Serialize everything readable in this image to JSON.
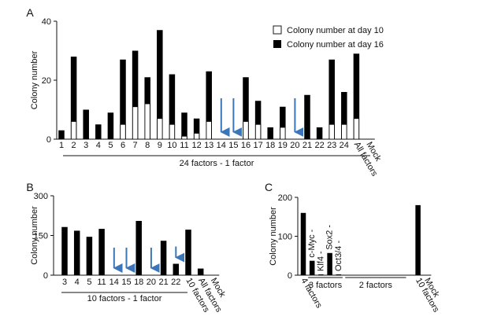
{
  "colors": {
    "bar": "#000000",
    "early_bar": "#ffffff",
    "bar_stroke": "#000000",
    "arrow": "#3a76b8",
    "axis": "#111111"
  },
  "chart_data": [
    {
      "panel": "A",
      "type": "bar",
      "stacking": "overlay",
      "ylabel": "Colony number",
      "yticks": [
        "0",
        "20",
        "40"
      ],
      "ylim": [
        0,
        40
      ],
      "categories": [
        "1",
        "2",
        "3",
        "4",
        "5",
        "6",
        "7",
        "8",
        "9",
        "10",
        "11",
        "12",
        "13",
        "14",
        "15",
        "16",
        "17",
        "18",
        "19",
        "20",
        "21",
        "22",
        "23",
        "24",
        "All factors",
        "Mock"
      ],
      "rotated_categories": [
        "All factors",
        "Mock"
      ],
      "series": [
        {
          "name": "Colony number at day 16",
          "style": "solid",
          "values": [
            3,
            28,
            10,
            5,
            9,
            27,
            30,
            21,
            37,
            22,
            9,
            7,
            23,
            0,
            0,
            21,
            13,
            4,
            11,
            0,
            15,
            4,
            27,
            16,
            29,
            0
          ]
        },
        {
          "name": "Colony number at day 10",
          "style": "open",
          "values": [
            0,
            6,
            0,
            0,
            0,
            5,
            11,
            12,
            7,
            5,
            1,
            2,
            6,
            0,
            0,
            6,
            5,
            0,
            4,
            0,
            0,
            0,
            5,
            5,
            7,
            0
          ]
        }
      ],
      "arrows": [
        "14",
        "15",
        "20"
      ],
      "legend_position": "top-right",
      "group_label": "24 factors - 1 factor",
      "grid": false
    },
    {
      "panel": "B",
      "type": "bar",
      "ylabel": "Colony number",
      "yticks": [
        "0",
        "150",
        "300"
      ],
      "ylim": [
        0,
        300
      ],
      "categories": [
        "3",
        "4",
        "5",
        "11",
        "14",
        "15",
        "18",
        "20",
        "21",
        "22",
        "10 factors",
        "All factors",
        "Mock"
      ],
      "rotated_categories": [
        "10 factors",
        "All factors",
        "Mock"
      ],
      "values": [
        182,
        168,
        145,
        175,
        0,
        0,
        205,
        0,
        130,
        43,
        172,
        25,
        0
      ],
      "arrows": [
        "14",
        "15",
        "20",
        "22"
      ],
      "group_label": "10 factors - 1 factor",
      "grid": false
    },
    {
      "panel": "C",
      "type": "bar",
      "ylabel": "Colony number",
      "yticks": [
        "0",
        "100",
        "200"
      ],
      "ylim": [
        0,
        200
      ],
      "categories": [
        "4 factors",
        "c-Myc -",
        "Klf4 -",
        "Sox2 -",
        "Oct3/4 -",
        "",
        "",
        "",
        "",
        "",
        "",
        "",
        "10 factors",
        "Mock"
      ],
      "category_positions": [
        0,
        1,
        2,
        3,
        4,
        5.2,
        6.2,
        7.2,
        8.2,
        9.2,
        10.2,
        11.2,
        13,
        14
      ],
      "rotated_categories": [
        "4 factors",
        "c-Myc -",
        "Klf4 -",
        "Sox2 -",
        "Oct3/4 -",
        "10 factors",
        "Mock"
      ],
      "values": [
        160,
        37,
        2,
        57,
        2,
        0,
        0,
        0,
        0,
        0,
        0,
        0,
        180,
        0
      ],
      "groups": [
        {
          "label": "3 factors",
          "from": 1,
          "to": 4
        },
        {
          "label": "2 factors",
          "from": 5,
          "to": 11
        }
      ],
      "grid": false
    }
  ],
  "panel_labels": [
    "A",
    "B",
    "C"
  ]
}
